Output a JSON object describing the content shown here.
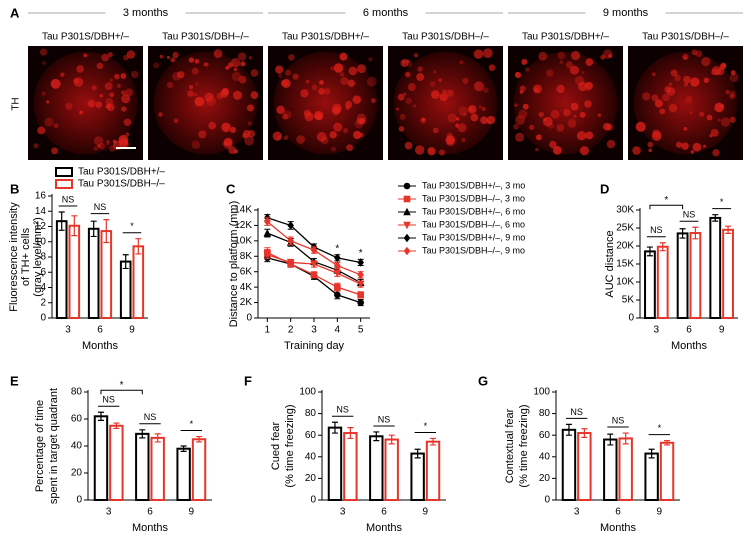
{
  "panel_a": {
    "panel": "A",
    "row_label": "TH",
    "groups": [
      {
        "title": "3 months",
        "labels": [
          "Tau P301S/DBH+/–",
          "Tau P301S/DBH–/–"
        ]
      },
      {
        "title": "6 months",
        "labels": [
          "Tau P301S/DBH+/–",
          "Tau P301S/DBH–/–"
        ]
      },
      {
        "title": "9 months",
        "labels": [
          "Tau P301S/DBH+/–",
          "Tau P301S/DBH–/–"
        ]
      }
    ]
  },
  "chart_data": [
    {
      "type": "bar",
      "panel": "B",
      "y_label": [
        "Fluorescence intensity",
        "of TH+ cells",
        "(gray level/mm²)"
      ],
      "x_label": "Months",
      "categories": [
        "3",
        "6",
        "9"
      ],
      "series": [
        {
          "name": "Tau P301S/DBH+/–",
          "color": "#000000",
          "values": [
            12.7,
            11.7,
            7.4
          ],
          "errors": [
            1.2,
            1.0,
            0.9
          ]
        },
        {
          "name": "Tau P301S/DBH–/–",
          "color": "#e8352b",
          "values": [
            12.1,
            11.4,
            9.4
          ],
          "errors": [
            1.3,
            1.5,
            1.0
          ]
        }
      ],
      "ylim": [
        0,
        16
      ],
      "yticks": [
        0,
        2,
        4,
        6,
        8,
        10,
        12,
        14,
        16
      ],
      "annotations": [
        "NS",
        "NS",
        "*"
      ]
    },
    {
      "type": "line",
      "panel": "C",
      "y_label": [
        "Distance to platform (mm)"
      ],
      "x_label": "Training day",
      "x": [
        1,
        2,
        3,
        4,
        5
      ],
      "series": [
        {
          "name": "Tau P301S/DBH+/–, 3 mo",
          "color": "#000000",
          "marker": "circle",
          "values": [
            7800,
            7000,
            5400,
            3000,
            2000
          ],
          "errors": [
            500,
            400,
            400,
            500,
            400
          ]
        },
        {
          "name": "Tau P301S/DBH–/–, 3 mo",
          "color": "#e8352b",
          "marker": "square",
          "values": [
            8500,
            7000,
            5600,
            4000,
            3000
          ],
          "errors": [
            600,
            400,
            400,
            500,
            400
          ]
        },
        {
          "name": "Tau P301S/DBH+/–, 6 mo",
          "color": "#000000",
          "marker": "triangle-up",
          "values": [
            11000,
            9800,
            7300,
            6200,
            4600
          ],
          "errors": [
            500,
            500,
            400,
            400,
            400
          ]
        },
        {
          "name": "Tau P301S/DBH–/–, 6 mo",
          "color": "#e8352b",
          "marker": "triangle-down",
          "values": [
            8200,
            7200,
            7000,
            5800,
            4400
          ],
          "errors": [
            500,
            400,
            400,
            400,
            400
          ]
        },
        {
          "name": "Tau P301S/DBH+/–, 9 mo",
          "color": "#000000",
          "marker": "diamond",
          "values": [
            13000,
            12000,
            9200,
            7800,
            7200
          ],
          "errors": [
            400,
            500,
            400,
            400,
            400
          ]
        },
        {
          "name": "Tau P301S/DBH–/–, 9 mo",
          "color": "#e8352b",
          "marker": "diamond",
          "values": [
            12500,
            10000,
            8800,
            6800,
            5600
          ],
          "errors": [
            500,
            500,
            400,
            400,
            400
          ]
        }
      ],
      "xlim": [
        0.6,
        5.4
      ],
      "xticks": [
        1,
        2,
        3,
        4,
        5
      ],
      "ylim": [
        0,
        14000
      ],
      "yticks": [
        0,
        {
          "value": 2000,
          "label": "2K"
        },
        {
          "value": 4000,
          "label": "4K"
        },
        {
          "value": 6000,
          "label": "6K"
        },
        {
          "value": 8000,
          "label": "8K"
        },
        {
          "value": 10000,
          "label": "10K"
        },
        {
          "value": 12000,
          "label": "12K"
        },
        {
          "value": 14000,
          "label": "14K"
        }
      ],
      "point_annotations": [
        {
          "x": 4,
          "label": "*"
        },
        {
          "x": 5,
          "label": "*"
        }
      ]
    },
    {
      "type": "bar",
      "panel": "D",
      "y_label": [
        "AUC distance"
      ],
      "x_label": "Months",
      "categories": [
        "3",
        "6",
        "9"
      ],
      "series": [
        {
          "color": "#000000",
          "values": [
            18500,
            23500,
            27800
          ],
          "errors": [
            1200,
            1300,
            900
          ]
        },
        {
          "color": "#e8352b",
          "values": [
            19800,
            23600,
            24500
          ],
          "errors": [
            1100,
            1600,
            1000
          ]
        }
      ],
      "ylim": [
        0,
        30000
      ],
      "yticks": [
        0,
        {
          "value": 5000,
          "label": "5K"
        },
        {
          "value": 10000,
          "label": "10K"
        },
        {
          "value": 15000,
          "label": "15K"
        },
        {
          "value": 20000,
          "label": "20K"
        },
        {
          "value": 25000,
          "label": "25K"
        },
        {
          "value": 30000,
          "label": "30K"
        }
      ],
      "annotations": [
        "NS",
        "NS",
        "*"
      ],
      "group_annotations": [
        "*"
      ]
    },
    {
      "type": "bar",
      "panel": "E",
      "y_label": [
        "Percentage of time",
        "spent in target quadrant"
      ],
      "x_label": "Months",
      "categories": [
        "3",
        "6",
        "9"
      ],
      "series": [
        {
          "color": "#000000",
          "values": [
            62,
            49,
            38
          ],
          "errors": [
            3,
            3,
            2
          ]
        },
        {
          "color": "#e8352b",
          "values": [
            55,
            46,
            45
          ],
          "errors": [
            2,
            3,
            2
          ]
        }
      ],
      "ylim": [
        0,
        80
      ],
      "yticks": [
        0,
        20,
        40,
        60,
        80
      ],
      "annotations": [
        "NS",
        "NS",
        "*"
      ],
      "group_annotations": [
        "*"
      ]
    },
    {
      "type": "bar",
      "panel": "F",
      "y_label": [
        "Cued fear",
        "(% time freezing)"
      ],
      "x_label": "Months",
      "categories": [
        "3",
        "6",
        "9"
      ],
      "series": [
        {
          "color": "#000000",
          "values": [
            67,
            59,
            43
          ],
          "errors": [
            5,
            4,
            4
          ]
        },
        {
          "color": "#e8352b",
          "values": [
            62,
            56,
            54
          ],
          "errors": [
            5,
            4,
            3
          ]
        }
      ],
      "ylim": [
        0,
        100
      ],
      "yticks": [
        0,
        20,
        40,
        60,
        80,
        100
      ],
      "annotations": [
        "NS",
        "NS",
        "*"
      ]
    },
    {
      "type": "bar",
      "panel": "G",
      "y_label": [
        "Contextual fear",
        "(% time freezing)"
      ],
      "x_label": "Months",
      "categories": [
        "3",
        "6",
        "9"
      ],
      "series": [
        {
          "color": "#000000",
          "values": [
            65,
            56,
            43
          ],
          "errors": [
            5,
            5,
            4
          ]
        },
        {
          "color": "#e8352b",
          "values": [
            62,
            57,
            53
          ],
          "errors": [
            4,
            5,
            2
          ]
        }
      ],
      "ylim": [
        0,
        100
      ],
      "yticks": [
        0,
        20,
        40,
        60,
        80,
        100
      ],
      "annotations": [
        "NS",
        "NS",
        "*"
      ]
    }
  ]
}
